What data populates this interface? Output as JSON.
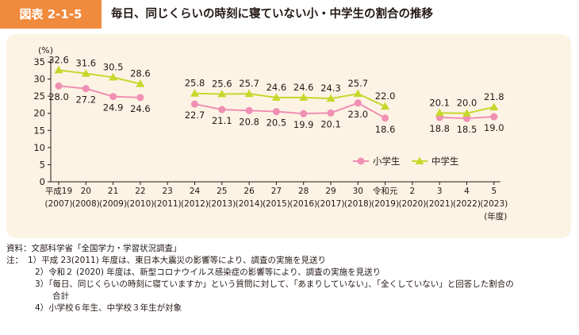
{
  "header": {
    "badge": "図表 2-1-5",
    "title": "毎日、同じくらいの時刻に寝ていない小・中学生の割合の推移"
  },
  "chart_data": {
    "type": "line",
    "unit_label": "(%)",
    "ylim": [
      0,
      35
    ],
    "yticks": [
      0,
      5,
      10,
      15,
      20,
      25,
      30,
      35
    ],
    "categories": [
      {
        "line1": "平成19",
        "line2": "(2007)"
      },
      {
        "line1": "20",
        "line2": "(2008)"
      },
      {
        "line1": "21",
        "line2": "(2009)"
      },
      {
        "line1": "22",
        "line2": "(2010)"
      },
      {
        "line1": "23",
        "line2": "(2011)"
      },
      {
        "line1": "24",
        "line2": "(2012)"
      },
      {
        "line1": "25",
        "line2": "(2013)"
      },
      {
        "line1": "26",
        "line2": "(2014)"
      },
      {
        "line1": "27",
        "line2": "(2015)"
      },
      {
        "line1": "28",
        "line2": "(2016)"
      },
      {
        "line1": "29",
        "line2": "(2017)"
      },
      {
        "line1": "30",
        "line2": "(2018)"
      },
      {
        "line1": "令和元",
        "line2": "(2019)"
      },
      {
        "line1": "2",
        "line2": "(2020)"
      },
      {
        "line1": "3",
        "line2": "(2021)"
      },
      {
        "line1": "4",
        "line2": "(2022)"
      },
      {
        "line1": "5",
        "line2": "(2023)"
      }
    ],
    "x_unit_label": "(年度)",
    "series": [
      {
        "name": "小学生",
        "color": "#f08fb4",
        "marker": "circle",
        "values": [
          28.0,
          27.2,
          24.9,
          24.6,
          null,
          22.7,
          21.1,
          20.8,
          20.5,
          19.9,
          20.1,
          23.0,
          18.6,
          null,
          18.8,
          18.5,
          19.0
        ],
        "labels": [
          "28.0",
          "27.2",
          "24.9",
          "24.6",
          null,
          "22.7",
          "21.1",
          "20.8",
          "20.5",
          "19.9",
          "20.1",
          "23.0",
          "18.6",
          null,
          "18.8",
          "18.5",
          "19.0"
        ]
      },
      {
        "name": "中学生",
        "color": "#c6d82c",
        "marker": "triangle",
        "values": [
          32.6,
          31.6,
          30.5,
          28.6,
          null,
          25.8,
          25.6,
          25.7,
          24.6,
          24.6,
          24.3,
          25.7,
          22.0,
          null,
          20.1,
          20.0,
          21.8
        ],
        "labels": [
          "32.6",
          "31.6",
          "30.5",
          "28.6",
          null,
          "25.8",
          "25.6",
          "25.7",
          "24.6",
          "24.6",
          "24.3",
          "25.7",
          "22.0",
          null,
          "20.1",
          "20.0",
          "21.8"
        ]
      }
    ],
    "legend_position": "right"
  },
  "notes": {
    "source": "資料：文部科学省「全国学力・学習状況調査」",
    "note_head": "注：",
    "items": [
      {
        "num": "1）",
        "text": "平成 23(2011) 年度は、東日本大震災の影響等により、調査の実施を見送り"
      },
      {
        "num": "2）",
        "text": "令和２ (2020) 年度は、新型コロナウイルス感染症の影響等により、調査の実施を見送り"
      },
      {
        "num": "3）",
        "text": "「毎日、同じくらいの時刻に寝ていますか」という質問に対して、「あまりしていない」、「全くしていない」と回答した割合の"
      },
      {
        "num": "",
        "text": "合計"
      },
      {
        "num": "4）",
        "text": "小学校６年生、中学校３年生が対象"
      }
    ]
  }
}
